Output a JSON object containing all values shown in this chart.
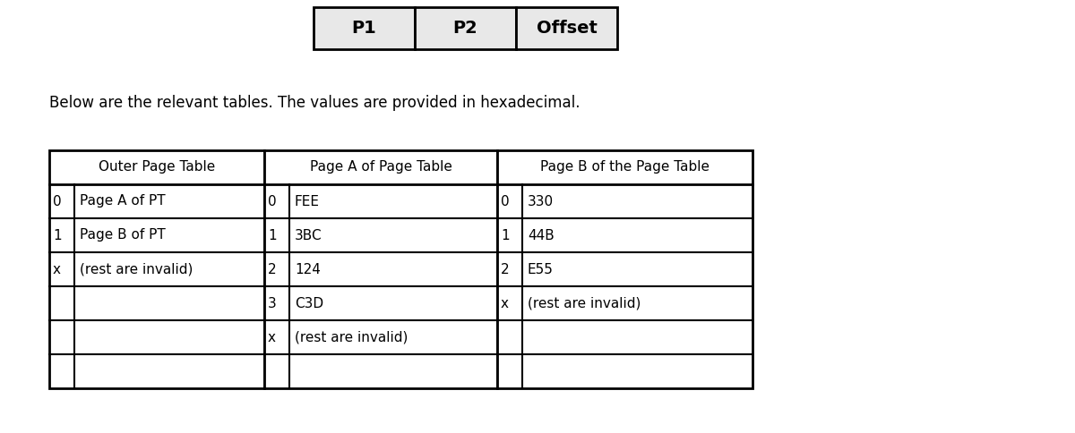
{
  "title_cells": [
    "P1",
    "P2",
    "Offset"
  ],
  "subtitle": "Below are the relevant tables. The values are provided in hexadecimal.",
  "outer_table": {
    "header": "Outer Page Table",
    "rows": [
      [
        "0",
        "Page A of PT"
      ],
      [
        "1",
        "Page B of PT"
      ],
      [
        "x",
        "(rest are invalid)"
      ],
      [
        "",
        ""
      ],
      [
        "",
        ""
      ],
      [
        "",
        ""
      ]
    ]
  },
  "pageA_table": {
    "header": "Page A of Page Table",
    "rows": [
      [
        "0",
        "FEE"
      ],
      [
        "1",
        "3BC"
      ],
      [
        "2",
        "124"
      ],
      [
        "3",
        "C3D"
      ],
      [
        "x",
        "(rest are invalid)"
      ],
      [
        "",
        ""
      ]
    ]
  },
  "pageB_table": {
    "header": "Page B of the Page Table",
    "rows": [
      [
        "0",
        "330"
      ],
      [
        "1",
        "44B"
      ],
      [
        "2",
        "E55"
      ],
      [
        "x",
        "(rest are invalid)"
      ],
      [
        "",
        ""
      ],
      [
        "",
        ""
      ]
    ]
  },
  "bg_color": "#ffffff",
  "border_color": "#000000",
  "text_color": "#000000",
  "top_box_bg": "#e8e8e8",
  "font_size_top": 14,
  "font_size_header": 11,
  "font_size_sub": 12,
  "font_size_cell": 11
}
